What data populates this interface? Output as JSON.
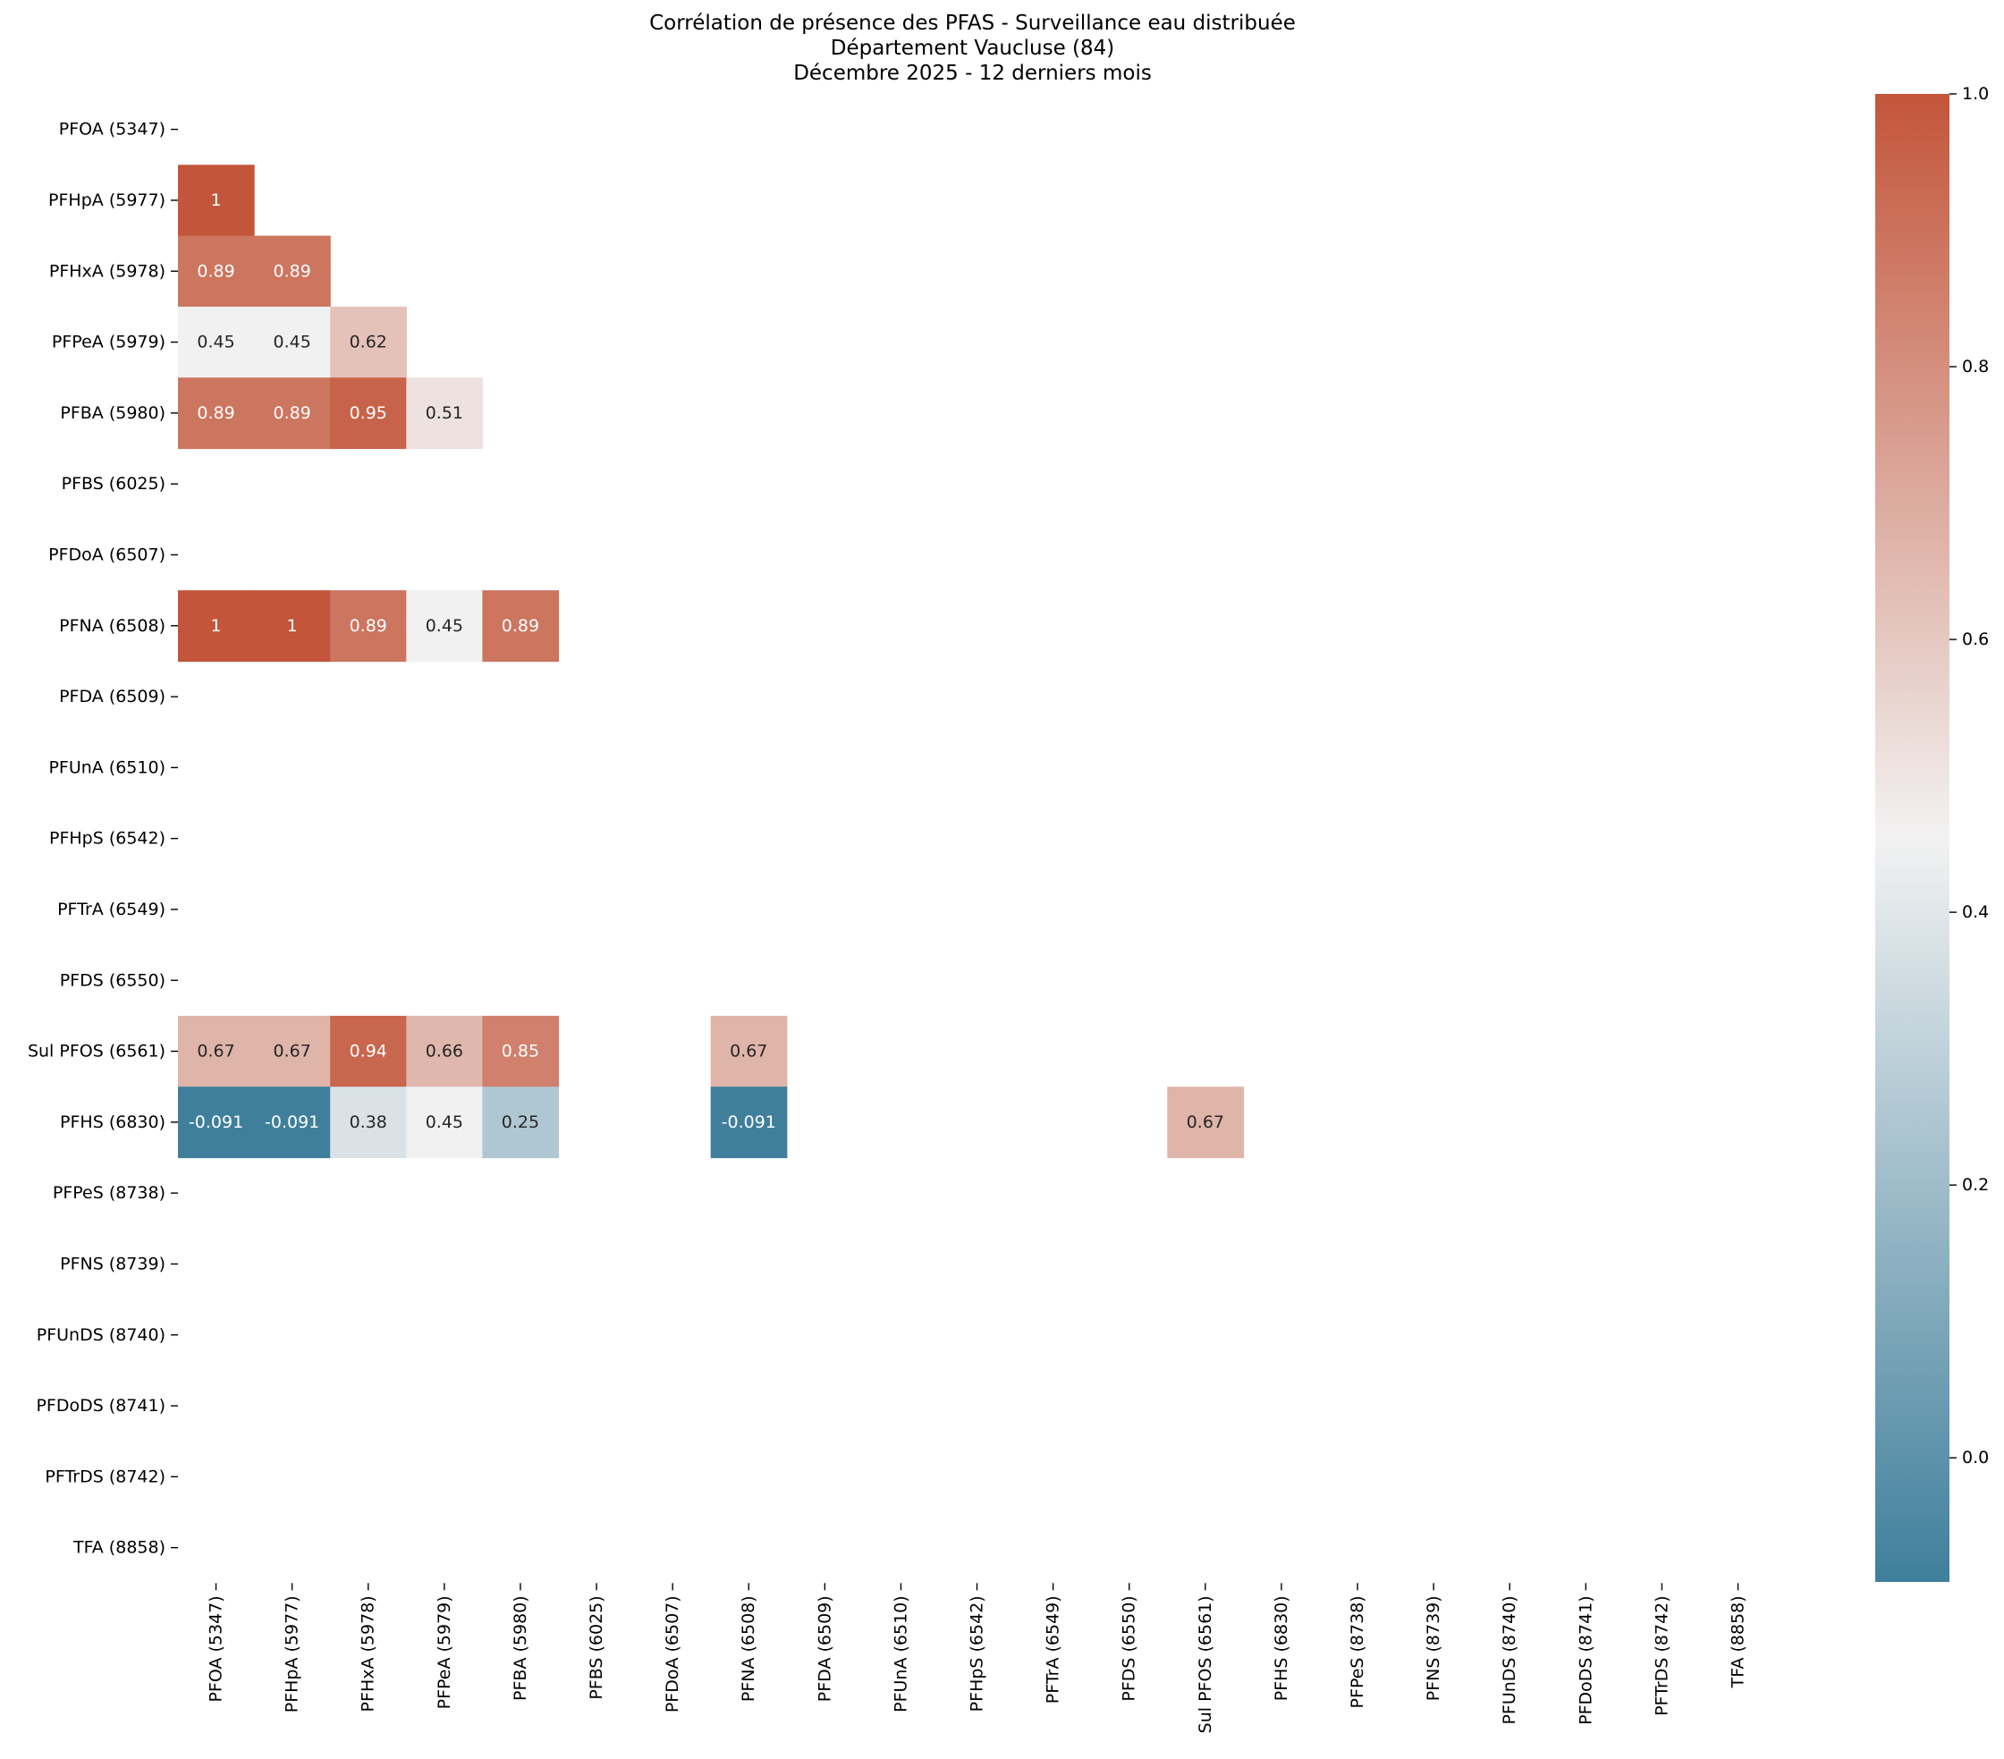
{
  "chart_data": {
    "type": "heatmap",
    "title_lines": [
      "Corrélation de présence des PFAS - Surveillance eau distribuée",
      "Département Vaucluse (84)",
      "Décembre 2025 - 12 derniers mois"
    ],
    "xlabel": "",
    "ylabel": "",
    "labels": [
      "PFOA (5347)",
      "PFHpA (5977)",
      "PFHxA (5978)",
      "PFPeA (5979)",
      "PFBA (5980)",
      "PFBS (6025)",
      "PFDoA (6507)",
      "PFNA (6508)",
      "PFDA (6509)",
      "PFUnA (6510)",
      "PFHpS (6542)",
      "PFTrA (6549)",
      "PFDS (6550)",
      "Sul PFOS (6561)",
      "PFHS (6830)",
      "PFPeS (8738)",
      "PFNS (8739)",
      "PFUnDS (8740)",
      "PFDoDS (8741)",
      "PFTrDS (8742)",
      "TFA (8858)"
    ],
    "cells": [
      {
        "row": 1,
        "col": 0,
        "value": 1,
        "label": "1"
      },
      {
        "row": 2,
        "col": 0,
        "value": 0.89,
        "label": "0.89"
      },
      {
        "row": 2,
        "col": 1,
        "value": 0.89,
        "label": "0.89"
      },
      {
        "row": 3,
        "col": 0,
        "value": 0.45,
        "label": "0.45"
      },
      {
        "row": 3,
        "col": 1,
        "value": 0.45,
        "label": "0.45"
      },
      {
        "row": 3,
        "col": 2,
        "value": 0.62,
        "label": "0.62"
      },
      {
        "row": 4,
        "col": 0,
        "value": 0.89,
        "label": "0.89"
      },
      {
        "row": 4,
        "col": 1,
        "value": 0.89,
        "label": "0.89"
      },
      {
        "row": 4,
        "col": 2,
        "value": 0.95,
        "label": "0.95"
      },
      {
        "row": 4,
        "col": 3,
        "value": 0.51,
        "label": "0.51"
      },
      {
        "row": 7,
        "col": 0,
        "value": 1,
        "label": "1"
      },
      {
        "row": 7,
        "col": 1,
        "value": 1,
        "label": "1"
      },
      {
        "row": 7,
        "col": 2,
        "value": 0.89,
        "label": "0.89"
      },
      {
        "row": 7,
        "col": 3,
        "value": 0.45,
        "label": "0.45"
      },
      {
        "row": 7,
        "col": 4,
        "value": 0.89,
        "label": "0.89"
      },
      {
        "row": 13,
        "col": 0,
        "value": 0.67,
        "label": "0.67"
      },
      {
        "row": 13,
        "col": 1,
        "value": 0.67,
        "label": "0.67"
      },
      {
        "row": 13,
        "col": 2,
        "value": 0.94,
        "label": "0.94"
      },
      {
        "row": 13,
        "col": 3,
        "value": 0.66,
        "label": "0.66"
      },
      {
        "row": 13,
        "col": 4,
        "value": 0.85,
        "label": "0.85"
      },
      {
        "row": 13,
        "col": 7,
        "value": 0.67,
        "label": "0.67"
      },
      {
        "row": 14,
        "col": 0,
        "value": -0.091,
        "label": "-0.091"
      },
      {
        "row": 14,
        "col": 1,
        "value": -0.091,
        "label": "-0.091"
      },
      {
        "row": 14,
        "col": 2,
        "value": 0.38,
        "label": "0.38"
      },
      {
        "row": 14,
        "col": 3,
        "value": 0.45,
        "label": "0.45"
      },
      {
        "row": 14,
        "col": 4,
        "value": 0.25,
        "label": "0.25"
      },
      {
        "row": 14,
        "col": 7,
        "value": -0.091,
        "label": "-0.091"
      },
      {
        "row": 14,
        "col": 13,
        "value": 0.67,
        "label": "0.67"
      }
    ],
    "colorbar": {
      "vmin": -0.091,
      "vmax": 1.0,
      "ticks": [
        0.0,
        0.2,
        0.4,
        0.6,
        0.8,
        1.0
      ],
      "tick_labels": [
        "0.0",
        "0.2",
        "0.4",
        "0.6",
        "0.8",
        "1.0"
      ],
      "colormap": "diverging blue-white-red",
      "low_color": "#3f7f9c",
      "mid_color": "#f2f2f2",
      "high_color": "#c3553a"
    },
    "masked": "upper triangle and diagonal",
    "grid": false
  }
}
